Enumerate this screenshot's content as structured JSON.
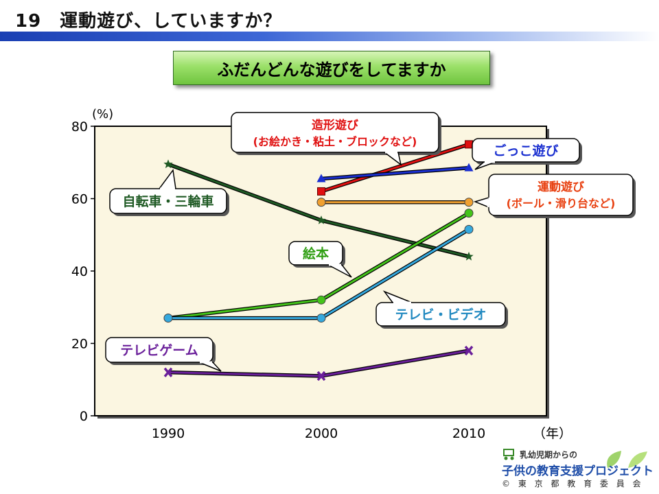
{
  "header": {
    "title": "19　運動遊び、していますか？"
  },
  "subtitle": "ふだんどんな遊びをしてますか",
  "logo": {
    "line1": "乳幼児期からの",
    "line2": "子供の教育支援プロジェクト",
    "line3": "© 東 京 都 教 育 委 員 会"
  },
  "chart_data": {
    "type": "line",
    "x": [
      1990,
      2000,
      2010
    ],
    "xlabel": "（年）",
    "ylabel": "(%)",
    "ylim": [
      0,
      80
    ],
    "yticks": [
      0,
      20,
      40,
      60,
      80
    ],
    "grid": false,
    "series": [
      {
        "name": "造形遊び（お絵かき・粘土・ブロックなど）",
        "line1": "造形遊び",
        "line2": "(お絵かき・粘土・ブロックなど)",
        "values": [
          null,
          62,
          75
        ],
        "color": "#e01010",
        "marker": "square",
        "label_color": "#e01010"
      },
      {
        "name": "ごっこ遊び",
        "line1": "ごっこ遊び",
        "values": [
          null,
          65.5,
          68.5
        ],
        "color": "#1a2fd0",
        "marker": "triangle",
        "label_color": "#1a2fd0"
      },
      {
        "name": "運動遊び（ボール・滑り台など）",
        "line1": "運動遊び",
        "line2": "(ボール・滑り台など)",
        "values": [
          null,
          59,
          59
        ],
        "color": "#f0a030",
        "marker": "circle",
        "label_color": "#e84010"
      },
      {
        "name": "自転車・三輪車",
        "line1": "自転車・三輪車",
        "values": [
          69.5,
          54,
          44
        ],
        "color": "#1f5a24",
        "marker": "star",
        "label_color": "#1f5a24"
      },
      {
        "name": "絵本",
        "line1": "絵本",
        "values": [
          27,
          32,
          56
        ],
        "color": "#44c41a",
        "marker": "circle",
        "label_color": "#2f9e12"
      },
      {
        "name": "テレビ・ビデオ",
        "line1": "テレビ・ビデオ",
        "values": [
          27,
          27,
          51.5
        ],
        "color": "#35a9de",
        "marker": "circle",
        "label_color": "#2189c0"
      },
      {
        "name": "テレビゲーム",
        "line1": "テレビゲーム",
        "values": [
          12,
          11,
          18
        ],
        "color": "#6a1f9a",
        "marker": "x",
        "label_color": "#6a1f9a"
      }
    ]
  }
}
